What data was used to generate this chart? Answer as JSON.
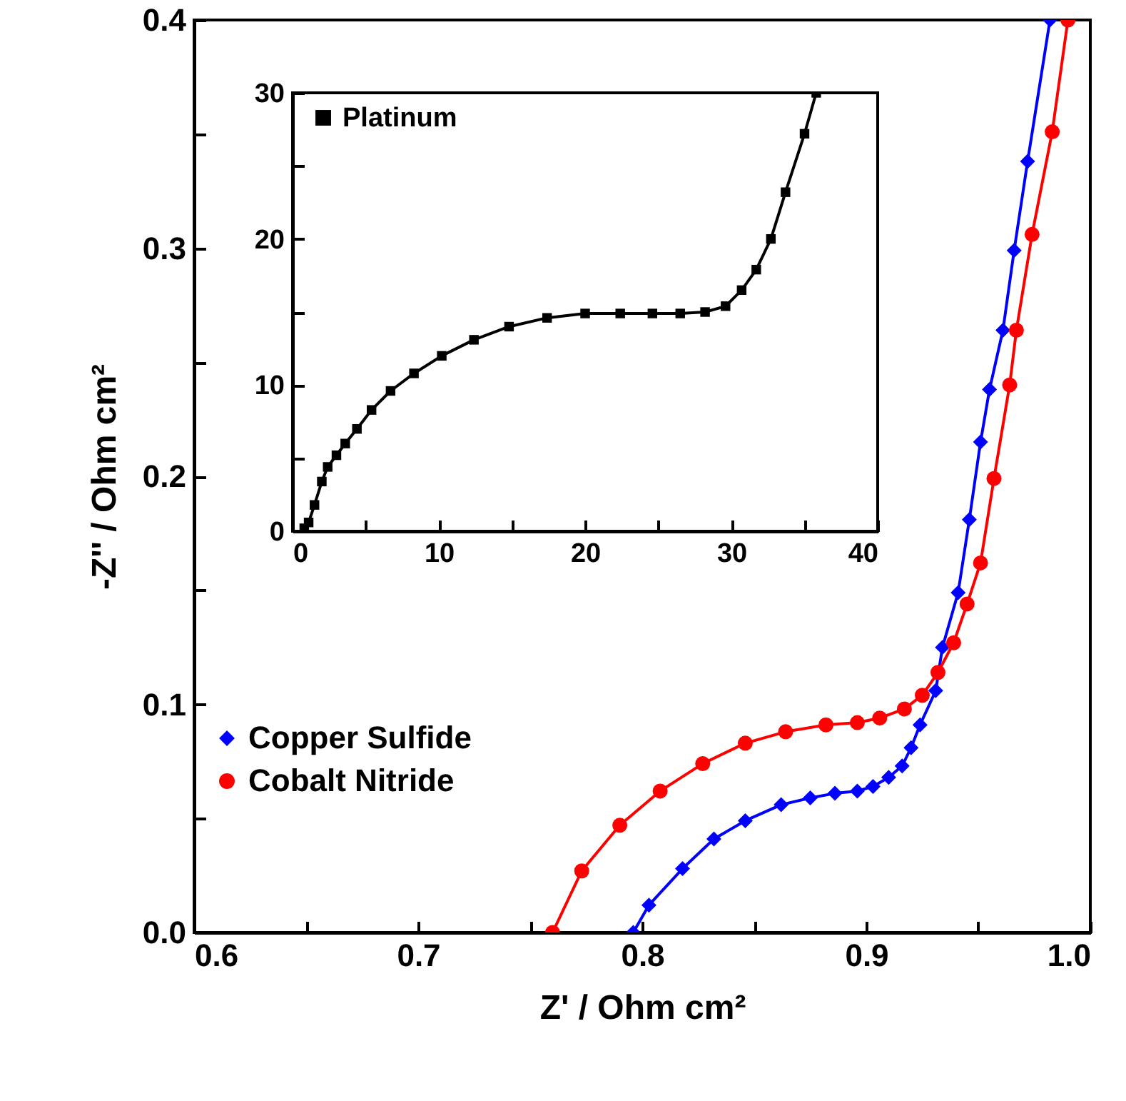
{
  "chart_data": [
    {
      "type": "line",
      "xlabel": "Z' / Ohm cm²",
      "ylabel": "-Z'' / Ohm cm²",
      "series": [
        {
          "name": "Copper Sulfide",
          "color": "#0000ff",
          "marker": "diamond",
          "x": [
            0.796,
            0.803,
            0.818,
            0.832,
            0.846,
            0.862,
            0.875,
            0.886,
            0.896,
            0.903,
            0.91,
            0.916,
            0.92,
            0.924,
            0.931,
            0.934,
            0.941,
            0.946,
            0.951,
            0.955,
            0.961,
            0.966,
            0.972,
            0.982
          ],
          "values": [
            0.0,
            0.012,
            0.028,
            0.041,
            0.049,
            0.056,
            0.059,
            0.061,
            0.062,
            0.064,
            0.068,
            0.073,
            0.081,
            0.091,
            0.106,
            0.125,
            0.149,
            0.181,
            0.215,
            0.238,
            0.264,
            0.299,
            0.338,
            0.4
          ]
        },
        {
          "name": "Cobalt Nitride",
          "color": "#ff0000",
          "marker": "circle",
          "x": [
            0.76,
            0.773,
            0.79,
            0.808,
            0.827,
            0.846,
            0.864,
            0.882,
            0.896,
            0.906,
            0.917,
            0.925,
            0.932,
            0.939,
            0.945,
            0.951,
            0.957,
            0.964,
            0.967,
            0.974,
            0.983,
            0.99
          ],
          "values": [
            0.0,
            0.027,
            0.047,
            0.062,
            0.074,
            0.083,
            0.088,
            0.091,
            0.092,
            0.094,
            0.098,
            0.104,
            0.114,
            0.127,
            0.144,
            0.162,
            0.199,
            0.24,
            0.264,
            0.306,
            0.351,
            0.4
          ]
        }
      ],
      "xlim": [
        0.6,
        1.0
      ],
      "xticks": [
        0.6,
        {
          "value": 0.65,
          "label": null
        },
        0.7,
        {
          "value": 0.75,
          "label": null
        },
        0.8,
        {
          "value": 0.85,
          "label": null
        },
        0.9,
        {
          "value": 0.95,
          "label": null
        },
        {
          "value": 1.0,
          "label": "1.0"
        }
      ],
      "ylim": [
        0,
        0.4
      ],
      "yticks": [
        {
          "value": 0,
          "label": "0.0"
        },
        {
          "value": 0.05,
          "label": null
        },
        0.1,
        {
          "value": 0.15,
          "label": null
        },
        0.2,
        {
          "value": 0.25,
          "label": null
        },
        0.3,
        {
          "value": 0.35,
          "label": null
        },
        0.4
      ],
      "legend": "left",
      "grid": false
    },
    {
      "type": "line",
      "series": [
        {
          "name": "Platinum",
          "color": "#000000",
          "marker": "square",
          "x": [
            0.8,
            1.1,
            1.5,
            2.0,
            2.4,
            3.0,
            3.6,
            4.4,
            5.4,
            6.7,
            8.3,
            10.2,
            12.4,
            14.8,
            17.4,
            20.0,
            22.4,
            24.6,
            26.5,
            28.2,
            29.6,
            30.7,
            31.7,
            32.7,
            33.7,
            35.0,
            35.8
          ],
          "values": [
            0.2,
            0.6,
            1.8,
            3.4,
            4.4,
            5.2,
            6.0,
            7.0,
            8.3,
            9.6,
            10.8,
            12.0,
            13.1,
            14.0,
            14.6,
            14.9,
            14.9,
            14.9,
            14.9,
            15.0,
            15.4,
            16.5,
            17.9,
            20.0,
            23.2,
            27.2,
            30
          ]
        }
      ],
      "xlim": [
        0,
        40
      ],
      "xticks": [
        0,
        {
          "value": 5,
          "label": null
        },
        10,
        {
          "value": 15,
          "label": null
        },
        20,
        {
          "value": 25,
          "label": null
        },
        30,
        {
          "value": 35,
          "label": null
        },
        40
      ],
      "ylim": [
        0,
        30
      ],
      "yticks": [
        0,
        {
          "value": 5,
          "label": null
        },
        10,
        {
          "value": 15,
          "label": null
        },
        20,
        {
          "value": 25,
          "label": null
        },
        30
      ],
      "legend": "top left",
      "grid": false
    }
  ]
}
